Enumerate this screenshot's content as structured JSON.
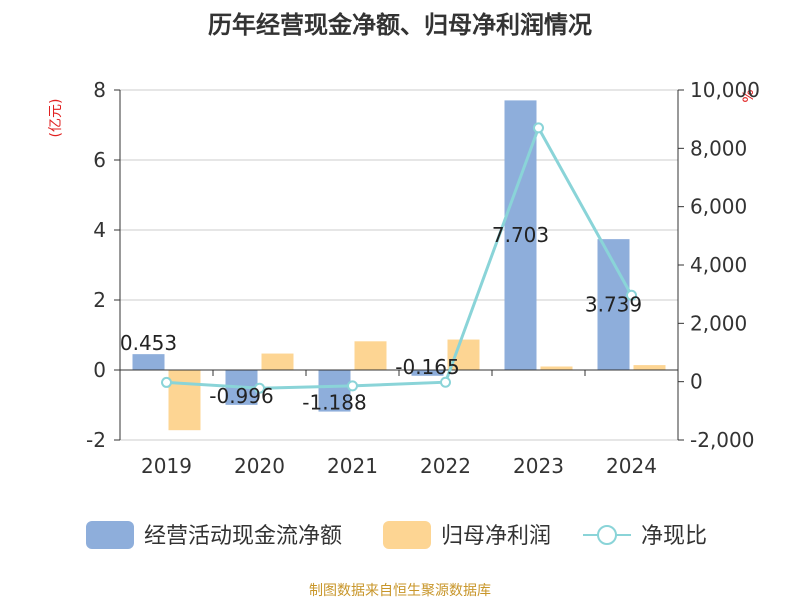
{
  "chart_data": {
    "type": "bar",
    "title": "历年经营现金净额、归母净利润情况",
    "categories": [
      "2019",
      "2020",
      "2021",
      "2022",
      "2023",
      "2024"
    ],
    "series": [
      {
        "name": "经营活动现金流净额",
        "type": "bar",
        "axis": "left",
        "color": "#8eaedb",
        "values": [
          0.453,
          -0.996,
          -1.188,
          -0.165,
          7.703,
          3.739
        ]
      },
      {
        "name": "归母净利润",
        "type": "bar",
        "axis": "left",
        "color": "#fdd593",
        "values": [
          -1.72,
          0.47,
          0.82,
          0.87,
          0.1,
          0.14
        ]
      },
      {
        "name": "净现比",
        "type": "line",
        "axis": "right",
        "color": "#8ad4d8",
        "values": [
          -26,
          -224,
          -145,
          -19,
          8700,
          2964
        ]
      }
    ],
    "data_labels": [
      "0.453",
      "-0.996",
      "-1.188",
      "-0.165",
      "7.703",
      "3.739"
    ],
    "left_axis": {
      "unit": "(亿元)",
      "ylim": [
        -2,
        8
      ],
      "ticks": [
        "-2",
        "0",
        "2",
        "4",
        "6",
        "8"
      ]
    },
    "right_axis": {
      "unit": "%",
      "ylim": [
        -2000,
        10000
      ],
      "ticks": [
        "-2,000",
        "0",
        "2,000",
        "4,000",
        "6,000",
        "8,000",
        "10,000"
      ]
    },
    "grid": true,
    "legend_position": "bottom",
    "source": "制图数据来自恒生聚源数据库"
  }
}
